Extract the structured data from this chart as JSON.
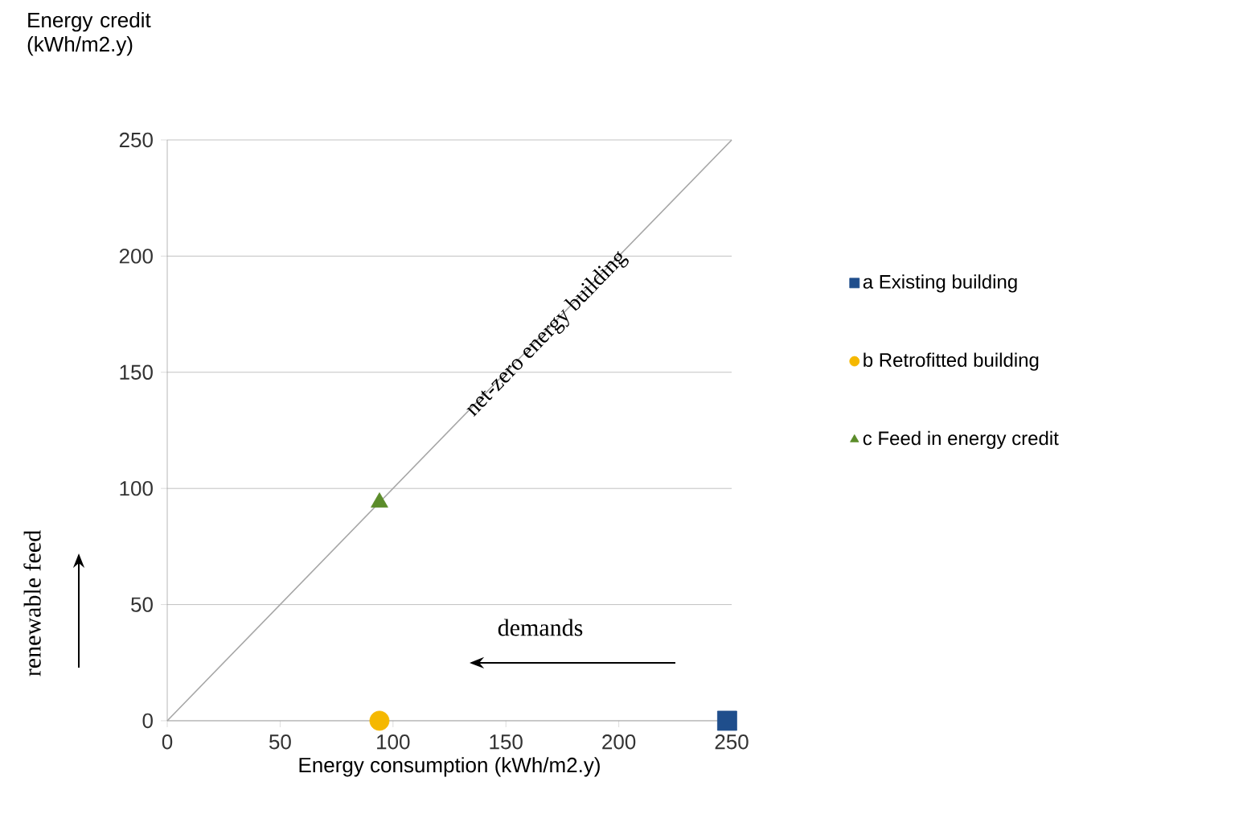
{
  "chart_data": {
    "type": "scatter",
    "xlabel": "Energy consumption (kWh/m2.y)",
    "ylabel": "Energy credit (kWh/m2.y)",
    "xlim": [
      0,
      250
    ],
    "ylim": [
      0,
      250
    ],
    "xticks": [
      0,
      50,
      100,
      150,
      200,
      250
    ],
    "yticks": [
      0,
      50,
      100,
      150,
      200,
      250
    ],
    "grid": "y",
    "legend": "right",
    "series": [
      {
        "name": "a Existing building",
        "color": "#1f4e8c",
        "marker": "square",
        "x": [
          248
        ],
        "values": [
          0
        ]
      },
      {
        "name": "b Retrofitted building",
        "color": "#f5b800",
        "marker": "circle",
        "x": [
          94
        ],
        "values": [
          0
        ]
      },
      {
        "name": "c Feed in energy credit",
        "color": "#5b8c2a",
        "marker": "triangle",
        "x": [
          94
        ],
        "values": [
          94
        ]
      },
      {
        "type": "line",
        "color": "#a6a6a6",
        "marker": "none",
        "x": [
          0,
          250
        ],
        "values": [
          0,
          250
        ]
      }
    ],
    "annotations": [
      "net-zero energy building",
      "demands",
      "renewable feed"
    ]
  }
}
